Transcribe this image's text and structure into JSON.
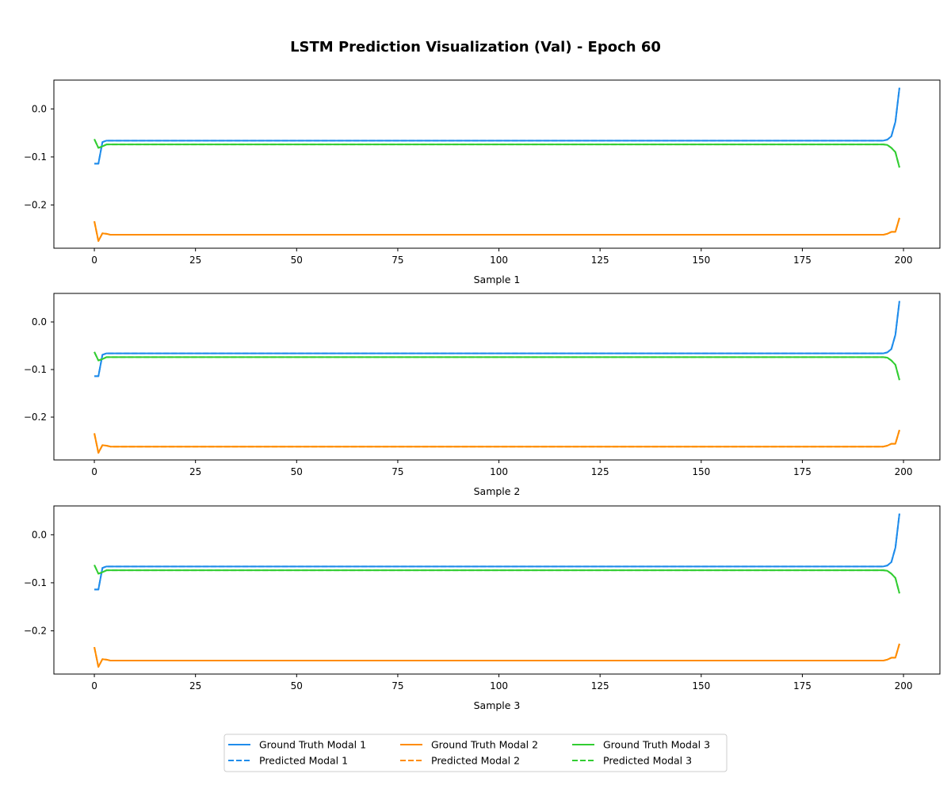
{
  "figure": {
    "title": "LSTM Prediction Visualization (Val) - Epoch 60"
  },
  "colors": {
    "modal_1": "#1f8ceb",
    "modal_2": "#ff8c00",
    "modal_3": "#32cd32"
  },
  "legend": {
    "entries": [
      {
        "label": "Ground Truth Modal 1",
        "color": "#1f8ceb",
        "style": "solid"
      },
      {
        "label": "Predicted Modal 1",
        "color": "#1f8ceb",
        "style": "dashed"
      },
      {
        "label": "Ground Truth Modal 2",
        "color": "#ff8c00",
        "style": "solid"
      },
      {
        "label": "Predicted Modal 2",
        "color": "#ff8c00",
        "style": "dashed"
      },
      {
        "label": "Ground Truth Modal 3",
        "color": "#32cd32",
        "style": "solid"
      },
      {
        "label": "Predicted Modal 3",
        "color": "#32cd32",
        "style": "dashed"
      }
    ],
    "placement": "bottom-center",
    "columns": 3
  },
  "chart_data": [
    {
      "type": "line",
      "xlabel": "Sample 1",
      "xlim": [
        -10,
        209
      ],
      "ylim": [
        -0.29,
        0.06
      ],
      "xticks": [
        0,
        25,
        50,
        75,
        100,
        125,
        150,
        175,
        200
      ],
      "yticks": [
        -0.2,
        -0.1,
        0.0
      ],
      "ytick_labels": [
        "−0.2",
        "−0.1",
        "0.0"
      ],
      "grid": false,
      "series": [
        {
          "name": "Ground Truth Modal 1",
          "color": "#1f8ceb",
          "style": "solid",
          "x": [
            0,
            1,
            2,
            3,
            4,
            195,
            196,
            197,
            198,
            199
          ],
          "y": [
            -0.114,
            -0.114,
            -0.069,
            -0.066,
            -0.066,
            -0.066,
            -0.064,
            -0.057,
            -0.027,
            0.044
          ]
        },
        {
          "name": "Predicted Modal 1",
          "color": "#1f8ceb",
          "style": "dashed",
          "x": [
            0,
            1,
            2,
            3,
            4,
            195,
            196,
            197,
            198,
            199
          ],
          "y": [
            -0.114,
            -0.114,
            -0.069,
            -0.066,
            -0.066,
            -0.066,
            -0.064,
            -0.057,
            -0.027,
            0.044
          ]
        },
        {
          "name": "Ground Truth Modal 2",
          "color": "#ff8c00",
          "style": "solid",
          "x": [
            0,
            1,
            2,
            3,
            4,
            195,
            196,
            197,
            198,
            199
          ],
          "y": [
            -0.234,
            -0.275,
            -0.259,
            -0.26,
            -0.262,
            -0.262,
            -0.26,
            -0.256,
            -0.256,
            -0.227
          ]
        },
        {
          "name": "Predicted Modal 2",
          "color": "#ff8c00",
          "style": "dashed",
          "x": [
            0,
            1,
            2,
            3,
            4,
            195,
            196,
            197,
            198,
            199
          ],
          "y": [
            -0.234,
            -0.275,
            -0.259,
            -0.26,
            -0.262,
            -0.262,
            -0.26,
            -0.256,
            -0.256,
            -0.227
          ]
        },
        {
          "name": "Ground Truth Modal 3",
          "color": "#32cd32",
          "style": "solid",
          "x": [
            0,
            1,
            2,
            3,
            4,
            195,
            196,
            197,
            198,
            199
          ],
          "y": [
            -0.063,
            -0.081,
            -0.078,
            -0.074,
            -0.074,
            -0.074,
            -0.075,
            -0.081,
            -0.09,
            -0.122
          ]
        },
        {
          "name": "Predicted Modal 3",
          "color": "#32cd32",
          "style": "dashed",
          "x": [
            0,
            1,
            2,
            3,
            4,
            195,
            196,
            197,
            198,
            199
          ],
          "y": [
            -0.063,
            -0.081,
            -0.078,
            -0.074,
            -0.074,
            -0.074,
            -0.075,
            -0.081,
            -0.09,
            -0.122
          ]
        }
      ]
    },
    {
      "type": "line",
      "xlabel": "Sample 2",
      "xlim": [
        -10,
        209
      ],
      "ylim": [
        -0.29,
        0.06
      ],
      "xticks": [
        0,
        25,
        50,
        75,
        100,
        125,
        150,
        175,
        200
      ],
      "yticks": [
        -0.2,
        -0.1,
        0.0
      ],
      "ytick_labels": [
        "−0.2",
        "−0.1",
        "0.0"
      ],
      "grid": false,
      "series": [
        {
          "name": "Ground Truth Modal 1",
          "color": "#1f8ceb",
          "style": "solid",
          "x": [
            0,
            1,
            2,
            3,
            4,
            195,
            196,
            197,
            198,
            199
          ],
          "y": [
            -0.114,
            -0.114,
            -0.069,
            -0.066,
            -0.066,
            -0.066,
            -0.064,
            -0.057,
            -0.027,
            0.044
          ]
        },
        {
          "name": "Predicted Modal 1",
          "color": "#1f8ceb",
          "style": "dashed",
          "x": [
            0,
            1,
            2,
            3,
            4,
            195,
            196,
            197,
            198,
            199
          ],
          "y": [
            -0.114,
            -0.114,
            -0.069,
            -0.066,
            -0.066,
            -0.066,
            -0.064,
            -0.057,
            -0.027,
            0.044
          ]
        },
        {
          "name": "Ground Truth Modal 2",
          "color": "#ff8c00",
          "style": "solid",
          "x": [
            0,
            1,
            2,
            3,
            4,
            195,
            196,
            197,
            198,
            199
          ],
          "y": [
            -0.234,
            -0.275,
            -0.259,
            -0.26,
            -0.262,
            -0.262,
            -0.26,
            -0.256,
            -0.256,
            -0.227
          ]
        },
        {
          "name": "Predicted Modal 2",
          "color": "#ff8c00",
          "style": "dashed",
          "x": [
            0,
            1,
            2,
            3,
            4,
            195,
            196,
            197,
            198,
            199
          ],
          "y": [
            -0.234,
            -0.275,
            -0.259,
            -0.26,
            -0.262,
            -0.262,
            -0.26,
            -0.256,
            -0.256,
            -0.227
          ]
        },
        {
          "name": "Ground Truth Modal 3",
          "color": "#32cd32",
          "style": "solid",
          "x": [
            0,
            1,
            2,
            3,
            4,
            195,
            196,
            197,
            198,
            199
          ],
          "y": [
            -0.063,
            -0.081,
            -0.078,
            -0.074,
            -0.074,
            -0.074,
            -0.075,
            -0.081,
            -0.09,
            -0.122
          ]
        },
        {
          "name": "Predicted Modal 3",
          "color": "#32cd32",
          "style": "dashed",
          "x": [
            0,
            1,
            2,
            3,
            4,
            195,
            196,
            197,
            198,
            199
          ],
          "y": [
            -0.063,
            -0.081,
            -0.078,
            -0.074,
            -0.074,
            -0.074,
            -0.075,
            -0.081,
            -0.09,
            -0.122
          ]
        }
      ]
    },
    {
      "type": "line",
      "xlabel": "Sample 3",
      "xlim": [
        -10,
        209
      ],
      "ylim": [
        -0.29,
        0.06
      ],
      "xticks": [
        0,
        25,
        50,
        75,
        100,
        125,
        150,
        175,
        200
      ],
      "yticks": [
        -0.2,
        -0.1,
        0.0
      ],
      "ytick_labels": [
        "−0.2",
        "−0.1",
        "0.0"
      ],
      "grid": false,
      "series": [
        {
          "name": "Ground Truth Modal 1",
          "color": "#1f8ceb",
          "style": "solid",
          "x": [
            0,
            1,
            2,
            3,
            4,
            195,
            196,
            197,
            198,
            199
          ],
          "y": [
            -0.114,
            -0.114,
            -0.069,
            -0.066,
            -0.066,
            -0.066,
            -0.064,
            -0.057,
            -0.027,
            0.044
          ]
        },
        {
          "name": "Predicted Modal 1",
          "color": "#1f8ceb",
          "style": "dashed",
          "x": [
            0,
            1,
            2,
            3,
            4,
            195,
            196,
            197,
            198,
            199
          ],
          "y": [
            -0.114,
            -0.114,
            -0.069,
            -0.066,
            -0.066,
            -0.066,
            -0.064,
            -0.057,
            -0.027,
            0.044
          ]
        },
        {
          "name": "Ground Truth Modal 2",
          "color": "#ff8c00",
          "style": "solid",
          "x": [
            0,
            1,
            2,
            3,
            4,
            195,
            196,
            197,
            198,
            199
          ],
          "y": [
            -0.234,
            -0.275,
            -0.259,
            -0.26,
            -0.262,
            -0.262,
            -0.26,
            -0.256,
            -0.256,
            -0.227
          ]
        },
        {
          "name": "Predicted Modal 2",
          "color": "#ff8c00",
          "style": "dashed",
          "x": [
            0,
            1,
            2,
            3,
            4,
            195,
            196,
            197,
            198,
            199
          ],
          "y": [
            -0.234,
            -0.275,
            -0.259,
            -0.26,
            -0.262,
            -0.262,
            -0.26,
            -0.256,
            -0.256,
            -0.227
          ]
        },
        {
          "name": "Ground Truth Modal 3",
          "color": "#32cd32",
          "style": "solid",
          "x": [
            0,
            1,
            2,
            3,
            4,
            195,
            196,
            197,
            198,
            199
          ],
          "y": [
            -0.063,
            -0.081,
            -0.078,
            -0.074,
            -0.074,
            -0.074,
            -0.075,
            -0.081,
            -0.09,
            -0.122
          ]
        },
        {
          "name": "Predicted Modal 3",
          "color": "#32cd32",
          "style": "dashed",
          "x": [
            0,
            1,
            2,
            3,
            4,
            195,
            196,
            197,
            198,
            199
          ],
          "y": [
            -0.063,
            -0.081,
            -0.078,
            -0.074,
            -0.074,
            -0.074,
            -0.075,
            -0.081,
            -0.09,
            -0.122
          ]
        }
      ]
    }
  ]
}
